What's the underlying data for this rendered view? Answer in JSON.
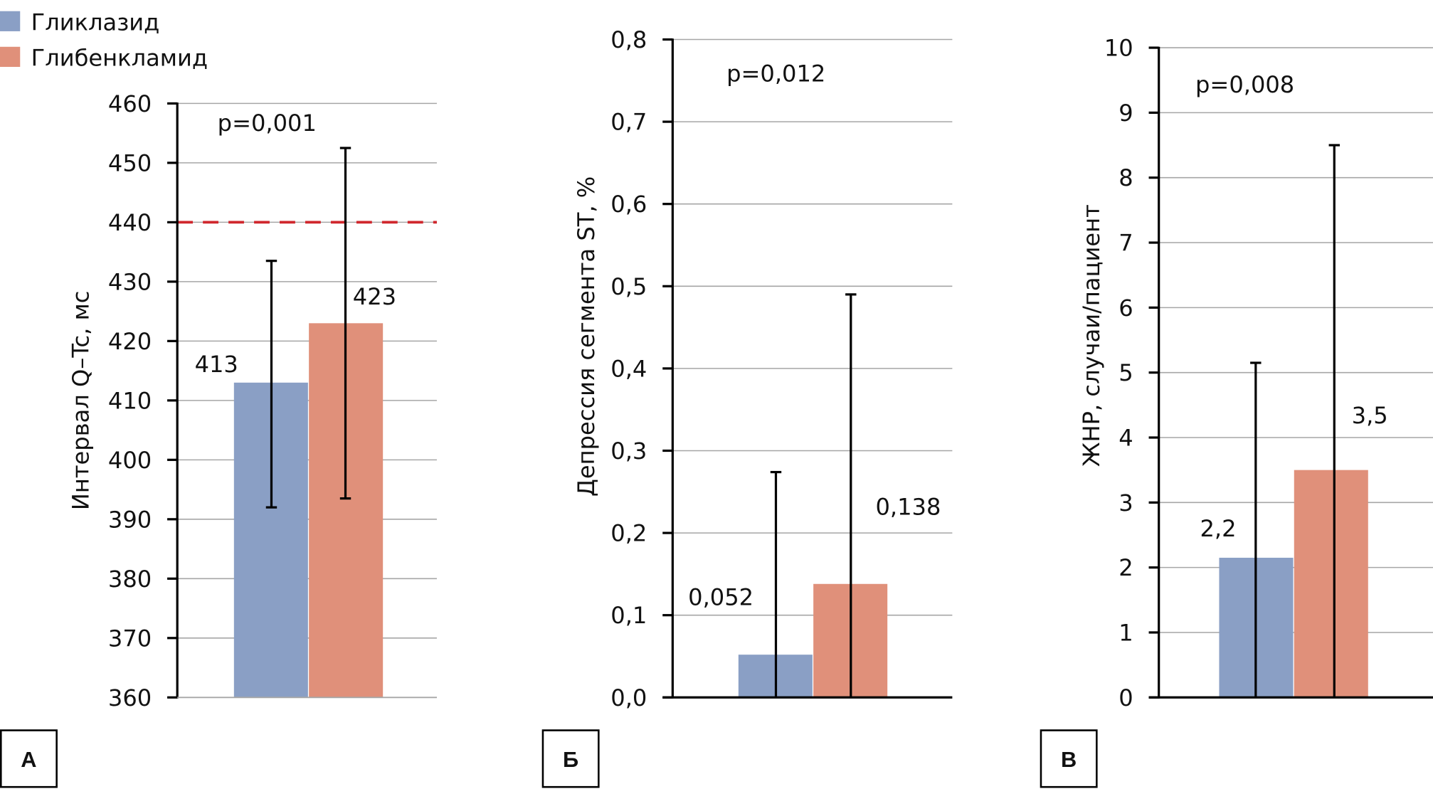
{
  "legend": [
    {
      "label": "Гликлазид",
      "color": "#8a9fc5"
    },
    {
      "label": "Глибенкламид",
      "color": "#e0907a"
    }
  ],
  "colors": {
    "series_a": "#8a9fc5",
    "series_b": "#e0907a",
    "reference_line": "#d0272d",
    "grid": "#a6a6a6"
  },
  "chart_data": [
    {
      "type": "bar",
      "panel": "А",
      "title": "",
      "xlabel": "",
      "ylabel": "Интервал Q–Tc, мс",
      "ylim": [
        360,
        460
      ],
      "yticks": [
        360,
        370,
        380,
        390,
        400,
        410,
        420,
        430,
        440,
        450,
        460
      ],
      "ytick_labels": [
        "360",
        "370",
        "380",
        "390",
        "400",
        "410",
        "420",
        "430",
        "440",
        "450",
        "460"
      ],
      "grid": true,
      "legend_position": "top-left",
      "annotation": "p=0,001",
      "reference_line": {
        "y": 440,
        "style": "dashed",
        "color": "#d0272d"
      },
      "categories": [
        ""
      ],
      "series": [
        {
          "name": "Гликлазид",
          "values": [
            413
          ],
          "label": "413",
          "error_low": [
            392
          ],
          "error_high": [
            433.5
          ]
        },
        {
          "name": "Глибенкламид",
          "values": [
            423
          ],
          "label": "423",
          "error_low": [
            393.5
          ],
          "error_high": [
            452.5
          ]
        }
      ]
    },
    {
      "type": "bar",
      "panel": "Б",
      "title": "",
      "xlabel": "",
      "ylabel": "Депрессия сегмента ST, %",
      "ylim": [
        0,
        0.8
      ],
      "yticks": [
        0,
        0.1,
        0.2,
        0.3,
        0.4,
        0.5,
        0.6,
        0.7,
        0.8
      ],
      "ytick_labels": [
        "0,0",
        "0,1",
        "0,2",
        "0,3",
        "0,4",
        "0,5",
        "0,6",
        "0,7",
        "0,8"
      ],
      "grid": true,
      "annotation": "p=0,012",
      "categories": [
        ""
      ],
      "series": [
        {
          "name": "Гликлазид",
          "values": [
            0.052
          ],
          "label": "0,052",
          "error_low": [
            0
          ],
          "error_high": [
            0.274
          ]
        },
        {
          "name": "Глибенкламид",
          "values": [
            0.138
          ],
          "label": "0,138",
          "error_low": [
            0
          ],
          "error_high": [
            0.49
          ]
        }
      ]
    },
    {
      "type": "bar",
      "panel": "В",
      "title": "",
      "xlabel": "",
      "ylabel": "ЖНР, случаи/пациент",
      "ylim": [
        0,
        10
      ],
      "yticks": [
        0,
        1,
        2,
        3,
        4,
        5,
        6,
        7,
        8,
        9,
        10
      ],
      "ytick_labels": [
        "0",
        "1",
        "2",
        "3",
        "4",
        "5",
        "6",
        "7",
        "8",
        "9",
        "10"
      ],
      "grid": true,
      "annotation": "p=0,008",
      "categories": [
        ""
      ],
      "series": [
        {
          "name": "Гликлазид",
          "values": [
            2.15
          ],
          "label": "2,2",
          "error_low": [
            0
          ],
          "error_high": [
            5.15
          ]
        },
        {
          "name": "Глибенкламид",
          "values": [
            3.5
          ],
          "label": "3,5",
          "error_low": [
            0
          ],
          "error_high": [
            8.5
          ]
        }
      ]
    }
  ]
}
